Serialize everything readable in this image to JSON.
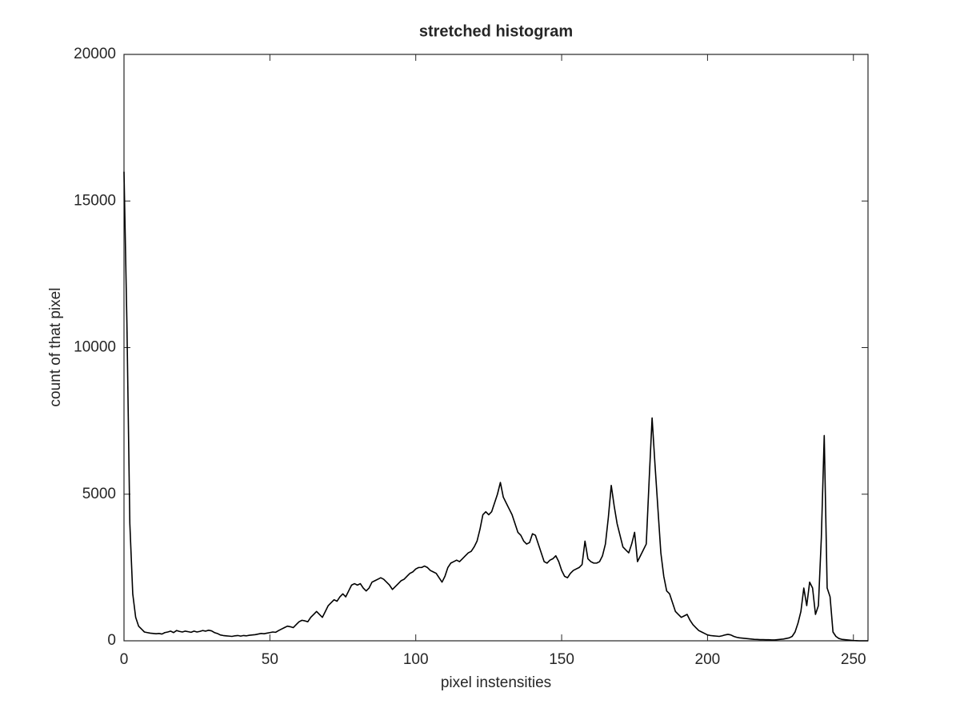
{
  "chart_data": {
    "type": "line",
    "title": "stretched histogram",
    "x_label": "pixel instensities",
    "y_label": "count of that pixel",
    "color": "#000000",
    "xlim": [
      0,
      255
    ],
    "ylim": [
      0,
      20000
    ],
    "xticks": [
      0,
      50,
      100,
      150,
      200,
      250
    ],
    "yticks": [
      0,
      5000,
      10000,
      15000,
      20000
    ],
    "x": [
      0,
      1,
      2,
      3,
      4,
      5,
      6,
      7,
      8,
      9,
      10,
      11,
      12,
      13,
      14,
      15,
      16,
      17,
      18,
      19,
      20,
      21,
      22,
      23,
      24,
      25,
      26,
      27,
      28,
      29,
      30,
      31,
      32,
      33,
      34,
      35,
      36,
      37,
      38,
      39,
      40,
      41,
      42,
      43,
      44,
      45,
      46,
      47,
      48,
      49,
      50,
      51,
      52,
      53,
      54,
      55,
      56,
      57,
      58,
      59,
      60,
      61,
      62,
      63,
      64,
      65,
      66,
      67,
      68,
      69,
      70,
      71,
      72,
      73,
      74,
      75,
      76,
      77,
      78,
      79,
      80,
      81,
      82,
      83,
      84,
      85,
      86,
      87,
      88,
      89,
      90,
      91,
      92,
      93,
      94,
      95,
      96,
      97,
      98,
      99,
      100,
      101,
      102,
      103,
      104,
      105,
      106,
      107,
      108,
      109,
      110,
      111,
      112,
      113,
      114,
      115,
      116,
      117,
      118,
      119,
      120,
      121,
      122,
      123,
      124,
      125,
      126,
      127,
      128,
      129,
      130,
      131,
      132,
      133,
      134,
      135,
      136,
      137,
      138,
      139,
      140,
      141,
      142,
      143,
      144,
      145,
      146,
      147,
      148,
      149,
      150,
      151,
      152,
      153,
      154,
      155,
      156,
      157,
      158,
      159,
      160,
      161,
      162,
      163,
      164,
      165,
      166,
      167,
      168,
      169,
      170,
      171,
      172,
      173,
      174,
      175,
      176,
      177,
      178,
      179,
      180,
      181,
      182,
      183,
      184,
      185,
      186,
      187,
      188,
      189,
      190,
      191,
      192,
      193,
      194,
      195,
      196,
      197,
      198,
      199,
      200,
      201,
      202,
      203,
      204,
      205,
      206,
      207,
      208,
      209,
      210,
      211,
      212,
      213,
      214,
      215,
      216,
      217,
      218,
      219,
      220,
      221,
      222,
      223,
      224,
      225,
      226,
      227,
      228,
      229,
      230,
      231,
      232,
      233,
      234,
      235,
      236,
      237,
      238,
      239,
      240,
      241,
      242,
      243,
      244,
      245,
      246,
      247,
      248,
      249,
      250,
      251,
      252,
      253,
      254,
      255
    ],
    "values": [
      16000,
      10800,
      4000,
      1600,
      800,
      500,
      400,
      300,
      280,
      260,
      250,
      240,
      250,
      230,
      280,
      300,
      330,
      280,
      350,
      320,
      300,
      330,
      310,
      290,
      330,
      300,
      320,
      350,
      330,
      360,
      340,
      280,
      250,
      200,
      180,
      170,
      160,
      150,
      170,
      180,
      160,
      180,
      170,
      190,
      200,
      210,
      230,
      250,
      240,
      260,
      280,
      300,
      290,
      350,
      400,
      450,
      500,
      480,
      450,
      550,
      650,
      700,
      680,
      650,
      800,
      900,
      1000,
      900,
      800,
      1000,
      1200,
      1300,
      1400,
      1350,
      1500,
      1600,
      1500,
      1700,
      1900,
      1950,
      1900,
      1950,
      1800,
      1700,
      1800,
      2000,
      2050,
      2100,
      2150,
      2100,
      2000,
      1900,
      1750,
      1850,
      1950,
      2050,
      2100,
      2200,
      2300,
      2350,
      2450,
      2500,
      2500,
      2550,
      2500,
      2400,
      2350,
      2300,
      2150,
      2000,
      2200,
      2500,
      2650,
      2700,
      2750,
      2700,
      2800,
      2900,
      3000,
      3050,
      3200,
      3400,
      3800,
      4300,
      4400,
      4300,
      4400,
      4700,
      5000,
      5400,
      4900,
      4700,
      4500,
      4300,
      4000,
      3700,
      3600,
      3400,
      3300,
      3350,
      3650,
      3600,
      3300,
      3000,
      2700,
      2650,
      2750,
      2800,
      2900,
      2700,
      2400,
      2200,
      2150,
      2300,
      2400,
      2450,
      2500,
      2600,
      3400,
      2800,
      2700,
      2650,
      2650,
      2700,
      2900,
      3300,
      4200,
      5300,
      4600,
      4000,
      3600,
      3200,
      3100,
      3000,
      3300,
      3700,
      2700,
      2900,
      3100,
      3300,
      5500,
      7600,
      6000,
      4500,
      3000,
      2200,
      1700,
      1600,
      1300,
      1000,
      900,
      800,
      850,
      900,
      700,
      550,
      450,
      350,
      300,
      250,
      200,
      180,
      170,
      160,
      150,
      170,
      200,
      220,
      200,
      150,
      120,
      100,
      90,
      80,
      70,
      60,
      50,
      45,
      40,
      40,
      35,
      35,
      30,
      30,
      40,
      50,
      60,
      80,
      100,
      150,
      300,
      600,
      1000,
      1800,
      1200,
      2000,
      1800,
      900,
      1200,
      3500,
      7000,
      1800,
      1500,
      300,
      150,
      80,
      50,
      40,
      30,
      20,
      10,
      5,
      0,
      0,
      0,
      0
    ]
  }
}
